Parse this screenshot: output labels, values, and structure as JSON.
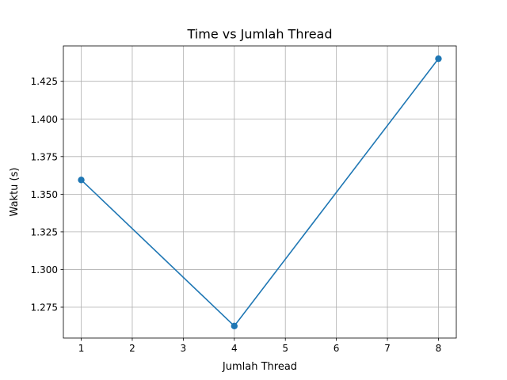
{
  "chart_data": {
    "type": "line",
    "title": "Time vs Jumlah Thread",
    "xlabel": "Jumlah Thread",
    "ylabel": "Waktu (s)",
    "x": [
      1,
      4,
      8
    ],
    "series": [
      {
        "values": [
          1.3595,
          1.2625,
          1.44
        ]
      }
    ],
    "xlim": [
      0.65,
      8.35
    ],
    "ylim": [
      1.2545,
      1.4485
    ],
    "xticks": [
      "1",
      "2",
      "3",
      "4",
      "5",
      "6",
      "7",
      "8"
    ],
    "yticks": [
      "1.275",
      "1.300",
      "1.325",
      "1.350",
      "1.375",
      "1.400",
      "1.425"
    ],
    "grid": true,
    "markers": true,
    "line_color": "#1f77b4",
    "grid_color": "#b0b0b0"
  }
}
